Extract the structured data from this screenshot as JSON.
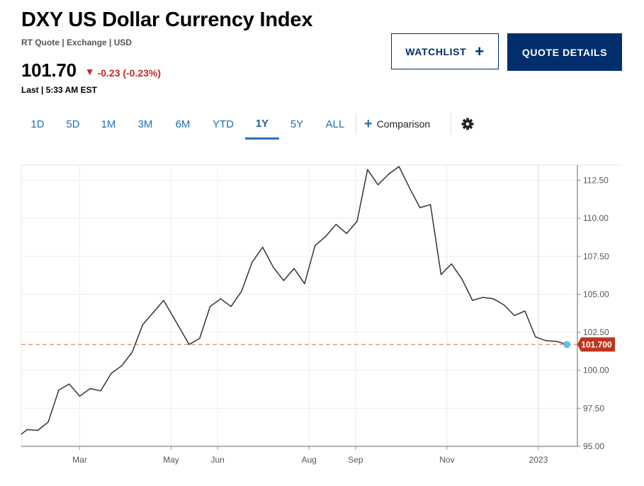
{
  "header": {
    "title": "DXY US Dollar Currency Index",
    "subtitle": "RT Quote | Exchange | USD",
    "price": "101.70",
    "change_arrow": "▼",
    "change": "-0.23 (-0.23%)",
    "last_time": "Last | 5:33 AM EST"
  },
  "actions": {
    "watchlist_label": "WATCHLIST",
    "watchlist_icon": "plus-icon",
    "quote_details_label": "QUOTE DETAILS"
  },
  "range_tabs": [
    {
      "label": "1D",
      "active": false
    },
    {
      "label": "5D",
      "active": false
    },
    {
      "label": "1M",
      "active": false
    },
    {
      "label": "3M",
      "active": false
    },
    {
      "label": "6M",
      "active": false
    },
    {
      "label": "YTD",
      "active": false
    },
    {
      "label": "1Y",
      "active": true
    },
    {
      "label": "5Y",
      "active": false
    },
    {
      "label": "ALL",
      "active": false
    }
  ],
  "comparison_label": "Comparison",
  "settings_icon": "gear-icon",
  "colors": {
    "navy": "#002f6c",
    "link_blue": "#1d6fb8",
    "down_red": "#c62828",
    "line": "#333333",
    "reference_line": "#e0866f",
    "current_marker": "#5bc0f0",
    "price_tag": "#c0341d"
  },
  "chart_data": {
    "type": "line",
    "title": "",
    "xlabel": "",
    "ylabel": "",
    "x_domain": [
      "2022-01-21",
      "2023-01-27"
    ],
    "ylim": [
      95,
      113.5
    ],
    "y_ticks": [
      95,
      97.5,
      100,
      102.5,
      105,
      107.5,
      110,
      112.5
    ],
    "y_tick_labels": [
      "95.00",
      "97.50",
      "100.00",
      "102.50",
      "105.00",
      "107.50",
      "110.00",
      "112.50"
    ],
    "x_ticks": [
      {
        "date": "2022-03-01",
        "label": "Mar"
      },
      {
        "date": "2022-05-01",
        "label": "May"
      },
      {
        "date": "2022-06-01",
        "label": "Jun"
      },
      {
        "date": "2022-08-01",
        "label": "Aug"
      },
      {
        "date": "2022-09-01",
        "label": "Sep"
      },
      {
        "date": "2022-11-01",
        "label": "Nov"
      },
      {
        "date": "2023-01-01",
        "label": "2023"
      }
    ],
    "grid": true,
    "last_value": 101.7,
    "last_value_label": "101.700",
    "series": [
      {
        "points": [
          [
            "2022-01-21",
            95.8
          ],
          [
            "2022-01-25",
            96.1
          ],
          [
            "2022-02-01",
            96.05
          ],
          [
            "2022-02-08",
            96.6
          ],
          [
            "2022-02-15",
            98.7
          ],
          [
            "2022-02-22",
            99.1
          ],
          [
            "2022-03-01",
            98.3
          ],
          [
            "2022-03-08",
            98.8
          ],
          [
            "2022-03-15",
            98.65
          ],
          [
            "2022-03-22",
            99.8
          ],
          [
            "2022-03-29",
            100.3
          ],
          [
            "2022-04-05",
            101.2
          ],
          [
            "2022-04-12",
            103.0
          ],
          [
            "2022-04-19",
            103.8
          ],
          [
            "2022-04-26",
            104.6
          ],
          [
            "2022-05-13",
            101.7
          ],
          [
            "2022-05-20",
            102.1
          ],
          [
            "2022-05-27",
            104.2
          ],
          [
            "2022-06-03",
            104.7
          ],
          [
            "2022-06-10",
            104.2
          ],
          [
            "2022-06-17",
            105.2
          ],
          [
            "2022-06-24",
            107.1
          ],
          [
            "2022-07-01",
            108.1
          ],
          [
            "2022-07-08",
            106.8
          ],
          [
            "2022-07-15",
            105.9
          ],
          [
            "2022-07-22",
            106.7
          ],
          [
            "2022-07-29",
            105.7
          ],
          [
            "2022-08-05",
            108.2
          ],
          [
            "2022-08-12",
            108.8
          ],
          [
            "2022-08-19",
            109.6
          ],
          [
            "2022-08-26",
            109.0
          ],
          [
            "2022-09-02",
            109.8
          ],
          [
            "2022-09-09",
            113.2
          ],
          [
            "2022-09-16",
            112.2
          ],
          [
            "2022-09-23",
            112.9
          ],
          [
            "2022-09-30",
            113.4
          ],
          [
            "2022-10-07",
            112.0
          ],
          [
            "2022-10-14",
            110.7
          ],
          [
            "2022-10-21",
            110.9
          ],
          [
            "2022-10-28",
            106.3
          ],
          [
            "2022-11-04",
            107.0
          ],
          [
            "2022-11-11",
            106.0
          ],
          [
            "2022-11-18",
            104.6
          ],
          [
            "2022-11-25",
            104.8
          ],
          [
            "2022-12-02",
            104.7
          ],
          [
            "2022-12-09",
            104.3
          ],
          [
            "2022-12-16",
            103.6
          ],
          [
            "2022-12-23",
            103.9
          ],
          [
            "2022-12-30",
            102.2
          ],
          [
            "2023-01-06",
            101.95
          ],
          [
            "2023-01-13",
            101.9
          ],
          [
            "2023-01-20",
            101.7
          ]
        ]
      }
    ]
  }
}
